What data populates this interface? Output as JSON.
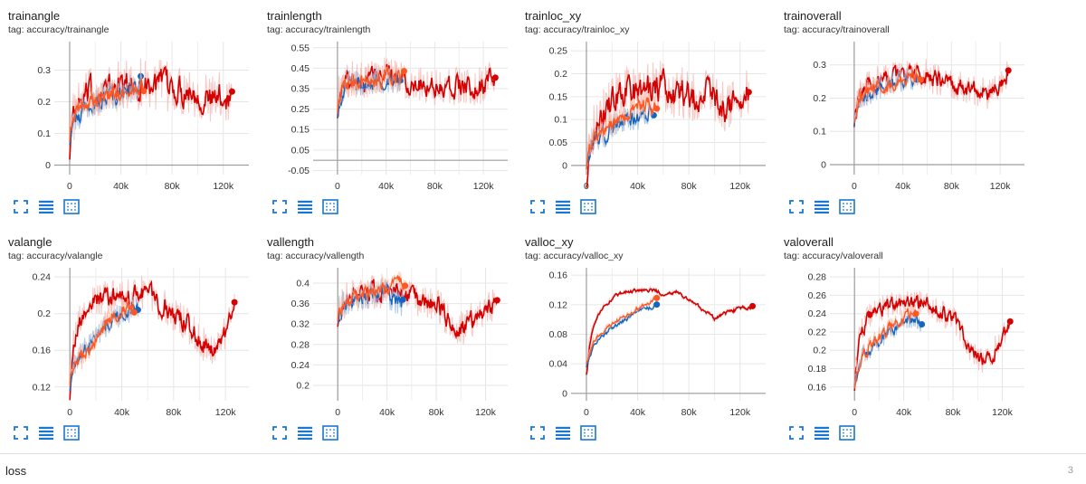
{
  "colors": {
    "run_red": "#d50000",
    "run_red_light": "#f4b4b0",
    "run_blue": "#1565c0",
    "run_blue_light": "#90b8e0",
    "run_orange": "#ff5722",
    "accent_icon": "#1976d2"
  },
  "toolbar_icons": [
    "expand-icon",
    "lines-icon",
    "fit-domain-icon"
  ],
  "loss": {
    "label": "loss",
    "count": "3"
  },
  "chart_data": [
    {
      "type": "line",
      "title": "trainangle",
      "tag": "tag: accuracy/trainangle",
      "xlim": [
        -12000,
        140000
      ],
      "ylim": [
        -0.03,
        0.39
      ],
      "xticks": [
        0,
        40000,
        80000,
        120000
      ],
      "xtick_labels": [
        "0",
        "40k",
        "80k",
        "120k"
      ],
      "yticks": [
        0,
        0.1,
        0.2,
        0.3
      ],
      "ytick_labels": [
        "0",
        "0.1",
        "0.2",
        "0.3"
      ],
      "grid": true,
      "series": [
        {
          "x": [
            0,
            2000,
            5000,
            10000,
            15000,
            20000,
            30000,
            40000,
            50000,
            60000,
            70000,
            80000,
            90000,
            100000,
            110000,
            120000,
            127000
          ],
          "y": [
            0.1,
            0.14,
            0.17,
            0.2,
            0.22,
            0.23,
            0.24,
            0.25,
            0.25,
            0.26,
            0.25,
            0.24,
            0.24,
            0.23,
            0.2,
            0.22,
            0.22
          ],
          "color": "red",
          "noise": 0.035
        },
        {
          "x": [
            0,
            2000,
            5000,
            10000,
            20000,
            30000,
            40000,
            50000,
            56000
          ],
          "y": [
            0.11,
            0.13,
            0.15,
            0.17,
            0.2,
            0.22,
            0.23,
            0.24,
            0.25
          ],
          "color": "blue",
          "noise": 0.02
        },
        {
          "x": [
            0,
            2000,
            5000,
            10000,
            20000,
            30000,
            40000,
            50000,
            58000
          ],
          "y": [
            0.12,
            0.14,
            0.16,
            0.18,
            0.21,
            0.22,
            0.23,
            0.24,
            0.25
          ],
          "color": "orange",
          "noise": 0.02
        }
      ]
    },
    {
      "type": "line",
      "title": "trainlength",
      "tag": "tag: accuracy/trainlength",
      "xlim": [
        -20000,
        140000
      ],
      "ylim": [
        -0.07,
        0.58
      ],
      "xticks": [
        0,
        40000,
        80000,
        120000
      ],
      "xtick_labels": [
        "0",
        "40k",
        "80k",
        "120k"
      ],
      "yticks": [
        -0.05,
        0.05,
        0.15,
        0.25,
        0.35,
        0.45,
        0.55
      ],
      "ytick_labels": [
        "-0.05",
        "0.05",
        "0.15",
        "0.25",
        "0.35",
        "0.45",
        "0.55"
      ],
      "grid": true,
      "series": [
        {
          "x": [
            0,
            2000,
            5000,
            10000,
            20000,
            30000,
            40000,
            50000,
            60000,
            70000,
            80000,
            90000,
            100000,
            110000,
            120000,
            130000
          ],
          "y": [
            0.3,
            0.36,
            0.38,
            0.39,
            0.4,
            0.41,
            0.41,
            0.4,
            0.39,
            0.38,
            0.36,
            0.37,
            0.36,
            0.35,
            0.37,
            0.4
          ],
          "color": "red",
          "noise": 0.04
        },
        {
          "x": [
            0,
            5000,
            15000,
            25000,
            35000,
            45000,
            52000
          ],
          "y": [
            0.28,
            0.36,
            0.38,
            0.39,
            0.4,
            0.4,
            0.38
          ],
          "color": "blue",
          "noise": 0.03
        },
        {
          "x": [
            0,
            5000,
            15000,
            25000,
            35000,
            45000,
            55000
          ],
          "y": [
            0.3,
            0.37,
            0.38,
            0.39,
            0.4,
            0.4,
            0.41
          ],
          "color": "orange",
          "noise": 0.03
        }
      ]
    },
    {
      "type": "line",
      "title": "trainloc_xy",
      "tag": "tag: accuracy/trainloc_xy",
      "xlim": [
        -12000,
        140000
      ],
      "ylim": [
        -0.02,
        0.27
      ],
      "xticks": [
        0,
        40000,
        80000,
        120000
      ],
      "xtick_labels": [
        "0",
        "40k",
        "80k",
        "120k"
      ],
      "yticks": [
        0,
        0.05,
        0.1,
        0.15,
        0.2,
        0.25
      ],
      "ytick_labels": [
        "0",
        "0.05",
        "0.1",
        "0.15",
        "0.2",
        "0.25"
      ],
      "grid": true,
      "series": [
        {
          "x": [
            0,
            2000,
            5000,
            10000,
            20000,
            30000,
            40000,
            50000,
            60000,
            70000,
            80000,
            90000,
            100000,
            110000,
            120000,
            127000
          ],
          "y": [
            0.01,
            0.06,
            0.08,
            0.1,
            0.14,
            0.16,
            0.16,
            0.17,
            0.17,
            0.16,
            0.15,
            0.16,
            0.15,
            0.13,
            0.13,
            0.17
          ],
          "color": "red",
          "noise": 0.025
        },
        {
          "x": [
            0,
            5000,
            15000,
            25000,
            35000,
            45000,
            53000
          ],
          "y": [
            0.02,
            0.05,
            0.07,
            0.09,
            0.1,
            0.11,
            0.11
          ],
          "color": "blue",
          "noise": 0.012
        },
        {
          "x": [
            0,
            5000,
            15000,
            25000,
            35000,
            45000,
            55000
          ],
          "y": [
            0.02,
            0.06,
            0.08,
            0.1,
            0.12,
            0.13,
            0.14
          ],
          "color": "orange",
          "noise": 0.012
        }
      ]
    },
    {
      "type": "line",
      "title": "trainoverall",
      "tag": "tag: accuracy/trainoverall",
      "xlim": [
        -20000,
        140000
      ],
      "ylim": [
        -0.03,
        0.37
      ],
      "xticks": [
        0,
        40000,
        80000,
        120000
      ],
      "xtick_labels": [
        "0",
        "40k",
        "80k",
        "120k"
      ],
      "yticks": [
        0,
        0.1,
        0.2,
        0.3
      ],
      "ytick_labels": [
        "0",
        "0.1",
        "0.2",
        "0.3"
      ],
      "grid": true,
      "series": [
        {
          "x": [
            0,
            2000,
            5000,
            10000,
            20000,
            30000,
            40000,
            50000,
            60000,
            70000,
            80000,
            90000,
            100000,
            110000,
            120000,
            127000
          ],
          "y": [
            0.16,
            0.19,
            0.21,
            0.23,
            0.25,
            0.26,
            0.27,
            0.27,
            0.27,
            0.25,
            0.24,
            0.23,
            0.22,
            0.21,
            0.24,
            0.27
          ],
          "color": "red",
          "noise": 0.02
        },
        {
          "x": [
            0,
            5000,
            15000,
            25000,
            35000,
            45000,
            52000
          ],
          "y": [
            0.15,
            0.2,
            0.22,
            0.24,
            0.25,
            0.26,
            0.26
          ],
          "color": "blue",
          "noise": 0.015
        },
        {
          "x": [
            0,
            5000,
            15000,
            25000,
            35000,
            45000,
            55000
          ],
          "y": [
            0.16,
            0.21,
            0.23,
            0.24,
            0.25,
            0.26,
            0.27
          ],
          "color": "orange",
          "noise": 0.015
        }
      ]
    },
    {
      "type": "line",
      "title": "valangle",
      "tag": "tag: accuracy/valangle",
      "xlim": [
        -12000,
        138000
      ],
      "ylim": [
        0.105,
        0.25
      ],
      "xticks": [
        0,
        40000,
        80000,
        120000
      ],
      "xtick_labels": [
        "0",
        "40k",
        "80k",
        "120k"
      ],
      "yticks": [
        0.12,
        0.16,
        0.2,
        0.24
      ],
      "ytick_labels": [
        "0.12",
        "0.16",
        "0.2",
        "0.24"
      ],
      "grid": true,
      "series": [
        {
          "x": [
            0,
            2000,
            5000,
            10000,
            20000,
            30000,
            40000,
            50000,
            60000,
            70000,
            80000,
            90000,
            100000,
            110000,
            120000,
            127000
          ],
          "y": [
            0.125,
            0.16,
            0.18,
            0.2,
            0.215,
            0.218,
            0.216,
            0.222,
            0.225,
            0.21,
            0.2,
            0.19,
            0.17,
            0.16,
            0.18,
            0.21
          ],
          "color": "red",
          "noise": 0.008
        },
        {
          "x": [
            0,
            5000,
            10000,
            20000,
            30000,
            40000,
            50000,
            53000
          ],
          "y": [
            0.13,
            0.15,
            0.16,
            0.175,
            0.19,
            0.2,
            0.205,
            0.207
          ],
          "color": "blue",
          "noise": 0.006
        },
        {
          "x": [
            0,
            5000,
            10000,
            20000,
            30000,
            40000,
            50000
          ],
          "y": [
            0.135,
            0.145,
            0.155,
            0.175,
            0.195,
            0.205,
            0.21
          ],
          "color": "orange",
          "noise": 0.006
        }
      ]
    },
    {
      "type": "line",
      "title": "vallength",
      "tag": "tag: accuracy/vallength",
      "xlim": [
        -20000,
        138000
      ],
      "ylim": [
        0.17,
        0.43
      ],
      "xticks": [
        0,
        40000,
        80000,
        120000
      ],
      "xtick_labels": [
        "0",
        "40k",
        "80k",
        "120k"
      ],
      "yticks": [
        0.2,
        0.24,
        0.28,
        0.32,
        0.36,
        0.4
      ],
      "ytick_labels": [
        "0.2",
        "0.24",
        "0.28",
        "0.32",
        "0.36",
        "0.4"
      ],
      "grid": true,
      "series": [
        {
          "x": [
            0,
            2000,
            5000,
            10000,
            20000,
            30000,
            40000,
            50000,
            60000,
            70000,
            80000,
            90000,
            100000,
            110000,
            120000,
            130000
          ],
          "y": [
            0.35,
            0.36,
            0.365,
            0.37,
            0.38,
            0.38,
            0.39,
            0.385,
            0.37,
            0.36,
            0.36,
            0.33,
            0.31,
            0.33,
            0.35,
            0.36
          ],
          "color": "red",
          "noise": 0.015
        },
        {
          "x": [
            0,
            5000,
            15000,
            25000,
            35000,
            45000,
            53000
          ],
          "y": [
            0.35,
            0.36,
            0.37,
            0.375,
            0.38,
            0.37,
            0.36
          ],
          "color": "blue",
          "noise": 0.012
        },
        {
          "x": [
            0,
            5000,
            15000,
            25000,
            35000,
            45000,
            55000
          ],
          "y": [
            0.35,
            0.36,
            0.37,
            0.38,
            0.39,
            0.4,
            0.4
          ],
          "color": "orange",
          "noise": 0.01
        }
      ]
    },
    {
      "type": "line",
      "title": "valloc_xy",
      "tag": "tag: accuracy/valloc_xy",
      "xlim": [
        -12000,
        140000
      ],
      "ylim": [
        -0.01,
        0.17
      ],
      "xticks": [
        0,
        40000,
        80000,
        120000
      ],
      "xtick_labels": [
        "0",
        "40k",
        "80k",
        "120k"
      ],
      "yticks": [
        0,
        0.04,
        0.08,
        0.12,
        0.16
      ],
      "ytick_labels": [
        "0",
        "0.04",
        "0.08",
        "0.12",
        "0.16"
      ],
      "grid": true,
      "series": [
        {
          "x": [
            0,
            2000,
            5000,
            10000,
            15000,
            20000,
            30000,
            40000,
            50000,
            60000,
            70000,
            80000,
            90000,
            100000,
            110000,
            120000,
            130000
          ],
          "y": [
            0.03,
            0.07,
            0.09,
            0.11,
            0.12,
            0.13,
            0.137,
            0.14,
            0.14,
            0.135,
            0.137,
            0.125,
            0.115,
            0.1,
            0.11,
            0.115,
            0.116
          ],
          "color": "red",
          "noise": 0.002
        },
        {
          "x": [
            0,
            5000,
            10000,
            20000,
            30000,
            40000,
            50000,
            55000
          ],
          "y": [
            0.04,
            0.065,
            0.075,
            0.09,
            0.1,
            0.11,
            0.117,
            0.118
          ],
          "color": "blue",
          "noise": 0.002
        },
        {
          "x": [
            0,
            5000,
            10000,
            20000,
            30000,
            40000,
            50000,
            55000
          ],
          "y": [
            0.045,
            0.07,
            0.08,
            0.095,
            0.105,
            0.115,
            0.125,
            0.13
          ],
          "color": "orange",
          "noise": 0.002
        }
      ]
    },
    {
      "type": "line",
      "title": "valoverall",
      "tag": "tag: accuracy/valoverall",
      "xlim": [
        -20000,
        138000
      ],
      "ylim": [
        0.145,
        0.29
      ],
      "xticks": [
        0,
        40000,
        80000,
        120000
      ],
      "xtick_labels": [
        "0",
        "40k",
        "80k",
        "120k"
      ],
      "yticks": [
        0.16,
        0.18,
        0.2,
        0.22,
        0.24,
        0.26,
        0.28
      ],
      "ytick_labels": [
        "0.16",
        "0.18",
        "0.2",
        "0.22",
        "0.24",
        "0.26",
        "0.28"
      ],
      "grid": true,
      "series": [
        {
          "x": [
            0,
            2000,
            5000,
            10000,
            20000,
            30000,
            40000,
            50000,
            60000,
            70000,
            80000,
            90000,
            100000,
            110000,
            120000,
            127000
          ],
          "y": [
            0.17,
            0.2,
            0.22,
            0.235,
            0.245,
            0.25,
            0.25,
            0.252,
            0.25,
            0.24,
            0.235,
            0.21,
            0.19,
            0.19,
            0.22,
            0.23
          ],
          "color": "red",
          "noise": 0.006
        },
        {
          "x": [
            0,
            5000,
            10000,
            20000,
            30000,
            40000,
            50000,
            55000
          ],
          "y": [
            0.17,
            0.19,
            0.2,
            0.21,
            0.22,
            0.23,
            0.235,
            0.228
          ],
          "color": "blue",
          "noise": 0.005
        },
        {
          "x": [
            0,
            5000,
            10000,
            20000,
            30000,
            40000,
            50000
          ],
          "y": [
            0.17,
            0.19,
            0.2,
            0.215,
            0.225,
            0.235,
            0.245
          ],
          "color": "orange",
          "noise": 0.005
        }
      ]
    }
  ]
}
